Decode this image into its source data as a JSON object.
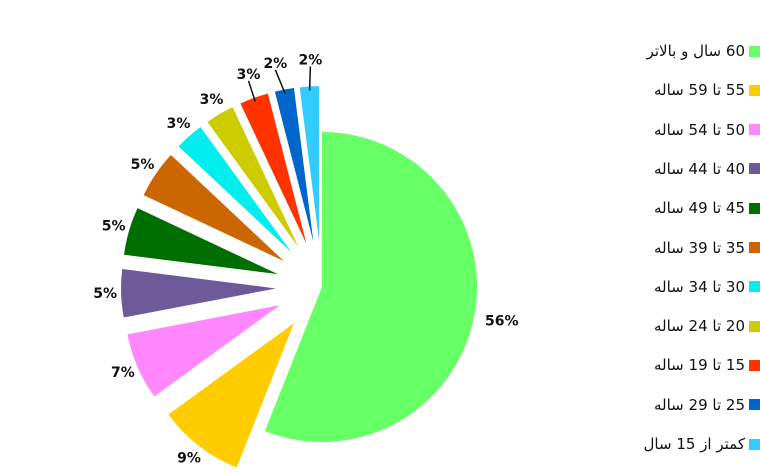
{
  "chart_data": {
    "type": "pie",
    "exploded": true,
    "slices": [
      {
        "label": "60 سال و بالاتر",
        "value": 56,
        "display": "56%",
        "color": "#66ff66"
      },
      {
        "label": "55 تا 59 ساله",
        "value": 9,
        "display": "9%",
        "color": "#ffcc00"
      },
      {
        "label": "50 تا 54 ساله",
        "value": 7,
        "display": "7%",
        "color": "#ff88ff"
      },
      {
        "label": "40 تا 44 ساله",
        "value": 5,
        "display": "5%",
        "color": "#6e5a99"
      },
      {
        "label": "45 تا 49 ساله",
        "value": 5,
        "display": "5%",
        "color": "#006e00"
      },
      {
        "label": "35 تا 39 ساله",
        "value": 5,
        "display": "5%",
        "color": "#cc6600"
      },
      {
        "label": "30 تا 34 ساله",
        "value": 3,
        "display": "3%",
        "color": "#00eeee"
      },
      {
        "label": "20 تا 24 ساله",
        "value": 3,
        "display": "3%",
        "color": "#cccc00"
      },
      {
        "label": "15 تا 19 ساله",
        "value": 3,
        "display": "3%",
        "color": "#ff3300"
      },
      {
        "label": "25 تا 29 ساله",
        "value": 2,
        "display": "2%",
        "color": "#0066cc"
      },
      {
        "label": "کمتر از 15 سال",
        "value": 2,
        "display": "2%",
        "color": "#33ccff"
      }
    ],
    "legend_position": "right"
  }
}
